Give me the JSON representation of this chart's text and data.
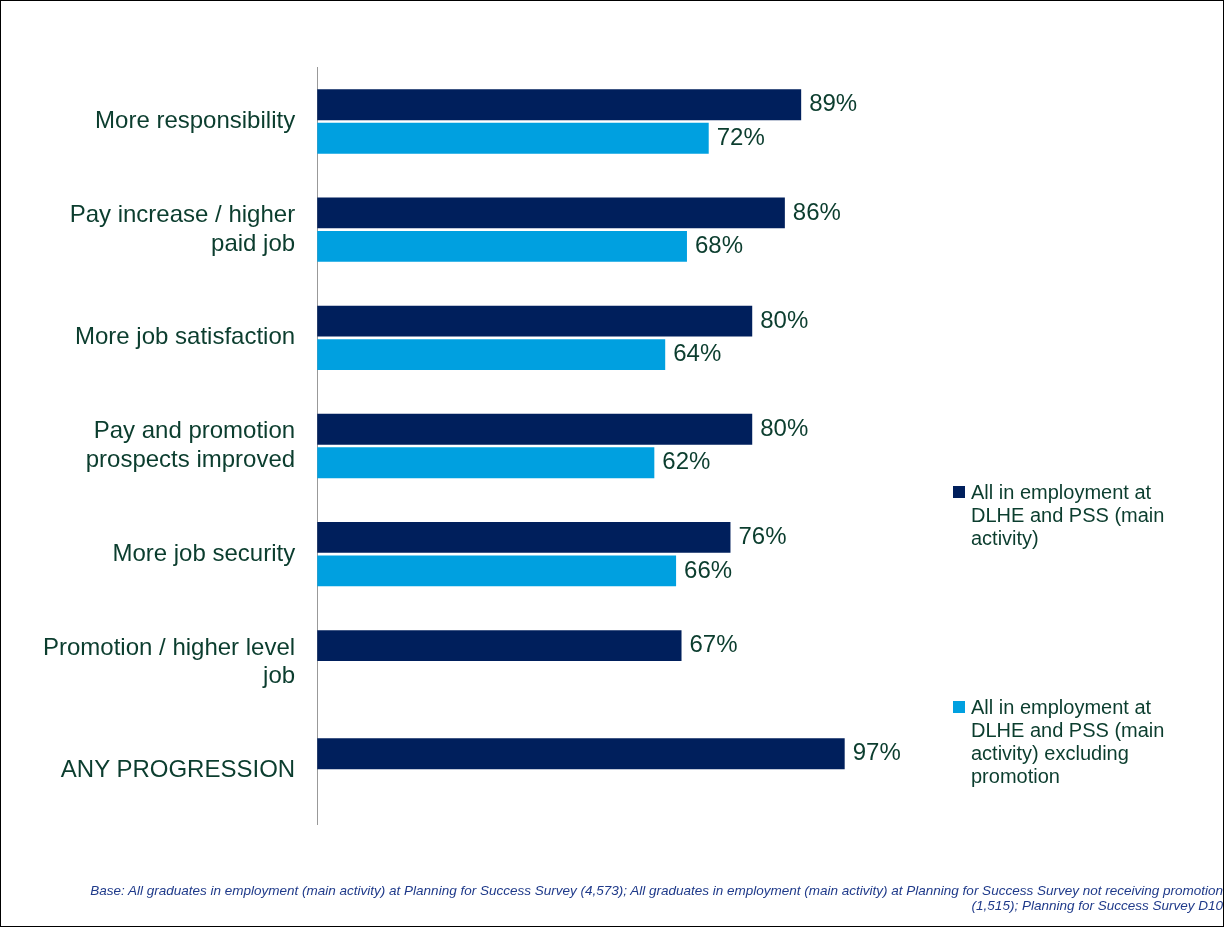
{
  "chart_data": {
    "type": "bar",
    "orientation": "horizontal",
    "categories": [
      "More responsibility",
      "Pay increase / higher paid job",
      "More job satisfaction",
      "Pay and promotion prospects improved",
      "More job security",
      "Promotion / higher level job",
      "ANY PROGRESSION"
    ],
    "series": [
      {
        "name": "All in employment at DLHE and PSS (main activity)",
        "color": "#001f5c",
        "values": [
          89,
          86,
          80,
          80,
          76,
          67,
          97
        ],
        "value_labels": [
          "89%",
          "86%",
          "80%",
          "80%",
          "76%",
          "67%",
          "97%"
        ]
      },
      {
        "name": "All in employment at DLHE and PSS (main activity) excluding promotion",
        "color": "#00a0e0",
        "values": [
          72,
          68,
          64,
          62,
          66,
          null,
          null
        ],
        "value_labels": [
          "72%",
          "68%",
          "64%",
          "62%",
          "66%",
          null,
          null
        ]
      }
    ],
    "tick_labels": "y",
    "grid": false,
    "legend": "right",
    "annotations": [
      "Base: All graduates in employment (main activity) at Planning for Success Survey (4,573); All graduates in employment (main activity) at Planning for Success Survey not receiving promotion  (1,515); Planning for Success Survey D10"
    ]
  }
}
